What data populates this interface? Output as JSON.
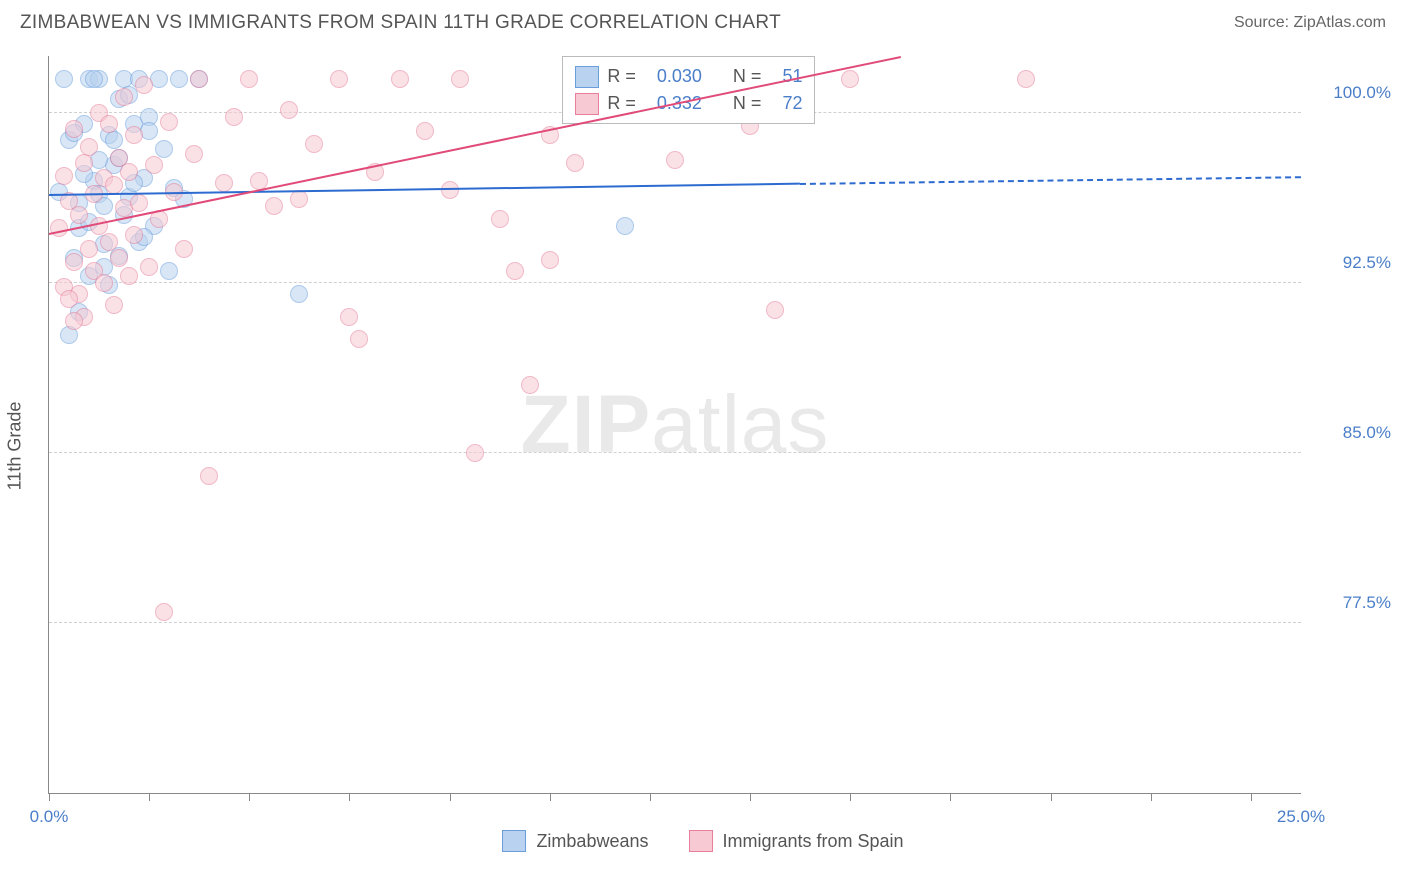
{
  "title": "ZIMBABWEAN VS IMMIGRANTS FROM SPAIN 11TH GRADE CORRELATION CHART",
  "source": "Source: ZipAtlas.com",
  "ylabel": "11th Grade",
  "watermark_bold": "ZIP",
  "watermark_light": "atlas",
  "chart": {
    "type": "scatter",
    "xlim": [
      0,
      25
    ],
    "ylim": [
      70,
      102.5
    ],
    "xticks": [
      0,
      2,
      4,
      6,
      8,
      10,
      12,
      14,
      16,
      18,
      20,
      22,
      24
    ],
    "xtick_labels": {
      "0": "0.0%",
      "25": "25.0%"
    },
    "yticks": [
      77.5,
      85.0,
      92.5,
      100.0
    ],
    "ytick_labels": [
      "77.5%",
      "85.0%",
      "92.5%",
      "100.0%"
    ],
    "background_color": "#ffffff",
    "grid_color": "#d0d0d0",
    "marker_radius": 9,
    "series": [
      {
        "name": "Zimbabweans",
        "color_fill": "#b9d2ef",
        "color_stroke": "#6a9edb",
        "trend_color": "#2d6bd0",
        "R": "0.030",
        "N": "51",
        "trend": {
          "x1": 0,
          "y1": 96.4,
          "x2_solid": 15,
          "y2_solid": 96.9,
          "x2": 25,
          "y2": 97.2
        },
        "points": [
          [
            0.2,
            96.5
          ],
          [
            0.3,
            101.5
          ],
          [
            0.4,
            98.8
          ],
          [
            0.5,
            93.6
          ],
          [
            0.6,
            94.9
          ],
          [
            0.6,
            96.0
          ],
          [
            0.8,
            101.5
          ],
          [
            0.7,
            99.5
          ],
          [
            0.8,
            95.2
          ],
          [
            0.9,
            97.0
          ],
          [
            1.0,
            101.5
          ],
          [
            1.0,
            96.4
          ],
          [
            1.1,
            93.2
          ],
          [
            1.1,
            94.2
          ],
          [
            1.2,
            99.0
          ],
          [
            0.4,
            90.2
          ],
          [
            1.3,
            97.7
          ],
          [
            1.3,
            98.8
          ],
          [
            1.4,
            93.7
          ],
          [
            1.5,
            101.5
          ],
          [
            1.5,
            95.5
          ],
          [
            1.6,
            96.3
          ],
          [
            1.7,
            99.5
          ],
          [
            1.8,
            101.5
          ],
          [
            1.8,
            94.3
          ],
          [
            1.9,
            97.1
          ],
          [
            2.0,
            99.8
          ],
          [
            2.1,
            95.0
          ],
          [
            2.2,
            101.5
          ],
          [
            2.3,
            98.4
          ],
          [
            2.4,
            93.0
          ],
          [
            2.5,
            96.7
          ],
          [
            2.6,
            101.5
          ],
          [
            2.0,
            99.2
          ],
          [
            1.2,
            92.4
          ],
          [
            1.4,
            100.6
          ],
          [
            0.6,
            91.2
          ],
          [
            0.9,
            101.5
          ],
          [
            0.5,
            99.1
          ],
          [
            1.0,
            97.9
          ],
          [
            1.1,
            95.9
          ],
          [
            1.6,
            100.8
          ],
          [
            1.7,
            96.9
          ],
          [
            1.9,
            94.5
          ],
          [
            0.7,
            97.3
          ],
          [
            0.8,
            92.8
          ],
          [
            5.0,
            92.0
          ],
          [
            2.7,
            96.2
          ],
          [
            11.5,
            95.0
          ],
          [
            3.0,
            101.5
          ],
          [
            1.4,
            98.0
          ]
        ]
      },
      {
        "name": "Immigrants from Spain",
        "color_fill": "#f6c9d3",
        "color_stroke": "#e77f9a",
        "trend_color": "#e04b79",
        "R": "0.332",
        "N": "72",
        "trend": {
          "x1": 0,
          "y1": 94.7,
          "x2_solid": 17,
          "y2_solid": 102.5,
          "x2": 17,
          "y2": 102.5
        },
        "points": [
          [
            0.2,
            94.9
          ],
          [
            0.3,
            97.2
          ],
          [
            0.3,
            92.3
          ],
          [
            0.4,
            96.1
          ],
          [
            0.5,
            93.4
          ],
          [
            0.5,
            99.3
          ],
          [
            0.6,
            95.5
          ],
          [
            0.6,
            92.0
          ],
          [
            0.7,
            97.8
          ],
          [
            0.7,
            91.0
          ],
          [
            0.8,
            94.0
          ],
          [
            0.8,
            98.5
          ],
          [
            0.9,
            96.4
          ],
          [
            0.9,
            93.0
          ],
          [
            1.0,
            100.0
          ],
          [
            1.0,
            95.0
          ],
          [
            1.1,
            97.1
          ],
          [
            1.1,
            92.5
          ],
          [
            1.2,
            99.5
          ],
          [
            1.2,
            94.3
          ],
          [
            1.3,
            96.8
          ],
          [
            1.3,
            91.5
          ],
          [
            1.4,
            98.0
          ],
          [
            1.4,
            93.6
          ],
          [
            1.5,
            100.7
          ],
          [
            1.5,
            95.8
          ],
          [
            1.6,
            97.4
          ],
          [
            1.6,
            92.8
          ],
          [
            1.7,
            99.0
          ],
          [
            1.7,
            94.6
          ],
          [
            1.8,
            96.0
          ],
          [
            1.9,
            101.2
          ],
          [
            2.0,
            93.2
          ],
          [
            2.1,
            97.7
          ],
          [
            2.2,
            95.3
          ],
          [
            2.4,
            99.6
          ],
          [
            2.5,
            96.5
          ],
          [
            2.7,
            94.0
          ],
          [
            2.9,
            98.2
          ],
          [
            3.0,
            101.5
          ],
          [
            3.2,
            84.0
          ],
          [
            2.3,
            78.0
          ],
          [
            3.5,
            96.9
          ],
          [
            3.7,
            99.8
          ],
          [
            4.0,
            101.5
          ],
          [
            4.2,
            97.0
          ],
          [
            4.5,
            95.9
          ],
          [
            4.8,
            100.1
          ],
          [
            5.0,
            96.2
          ],
          [
            5.3,
            98.6
          ],
          [
            5.8,
            101.5
          ],
          [
            6.0,
            91.0
          ],
          [
            6.2,
            90.0
          ],
          [
            6.5,
            97.4
          ],
          [
            7.0,
            101.5
          ],
          [
            7.5,
            99.2
          ],
          [
            8.0,
            96.6
          ],
          [
            8.2,
            101.5
          ],
          [
            8.5,
            85.0
          ],
          [
            9.0,
            95.3
          ],
          [
            9.3,
            93.0
          ],
          [
            9.6,
            88.0
          ],
          [
            10.0,
            93.5
          ],
          [
            10.5,
            97.8
          ],
          [
            10.0,
            99.0
          ],
          [
            12.5,
            97.9
          ],
          [
            14.0,
            99.4
          ],
          [
            14.5,
            91.3
          ],
          [
            16.0,
            101.5
          ],
          [
            19.5,
            101.5
          ],
          [
            0.5,
            90.8
          ],
          [
            0.4,
            91.8
          ]
        ]
      }
    ]
  },
  "legend_bottom": [
    {
      "swatch_fill": "#b9d2ef",
      "swatch_stroke": "#6a9edb",
      "label": "Zimbabweans"
    },
    {
      "swatch_fill": "#f6c9d3",
      "swatch_stroke": "#e77f9a",
      "label": "Immigrants from Spain"
    }
  ],
  "stats_box": {
    "left_pct": 41,
    "top_pct": 0,
    "rows": [
      {
        "swatch_fill": "#b9d2ef",
        "swatch_stroke": "#6a9edb",
        "R": "0.030",
        "N": "51"
      },
      {
        "swatch_fill": "#f6c9d3",
        "swatch_stroke": "#e77f9a",
        "R": "0.332",
        "N": "72"
      }
    ]
  }
}
